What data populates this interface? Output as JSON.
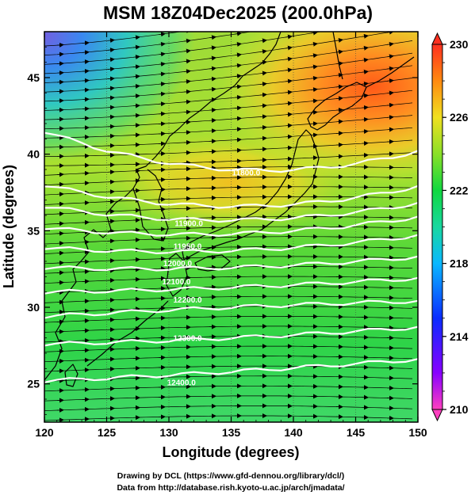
{
  "title": "MSM 18Z04Dec2025 (200.0hPa)",
  "xlabel": "Longitude (degrees)",
  "ylabel": "Latitude  (degrees)",
  "credits": [
    "Drawing by DCL (https://www.gfd-dennou.org/library/dcl/)",
    "Data from http://database.rish.kyoto-u.ac.jp/arch/jmadata/"
  ],
  "map": {
    "lon_range": [
      120,
      150
    ],
    "lat_range": [
      22.5,
      48
    ],
    "lon_ticks": [
      "120",
      "125",
      "130",
      "135",
      "140",
      "145",
      "150"
    ],
    "lat_ticks": [
      "25",
      "30",
      "35",
      "40",
      "45"
    ],
    "fill_variable_range": [
      210,
      230
    ],
    "colorbar_ticks": [
      "210",
      "214",
      "218",
      "222",
      "226",
      "230"
    ],
    "contour_labels": [
      {
        "text": "11800.0",
        "lon": 136.2,
        "lat": 38.6
      },
      {
        "text": "11900.0",
        "lon": 131.6,
        "lat": 35.3
      },
      {
        "text": "11950.0",
        "lon": 131.5,
        "lat": 33.8
      },
      {
        "text": "12000.0",
        "lon": 130.7,
        "lat": 32.7
      },
      {
        "text": "12100.0",
        "lon": 130.6,
        "lat": 31.5
      },
      {
        "text": "12200.0",
        "lon": 131.5,
        "lat": 30.3
      },
      {
        "text": "12300.0",
        "lon": 131.5,
        "lat": 27.8
      },
      {
        "text": "12400.0",
        "lon": 131.0,
        "lat": 24.9
      }
    ],
    "contours": [
      {
        "lat_west": 41.5,
        "lat_mid": 39.0,
        "lat_east": 40.2
      },
      {
        "lat_west": 38.0,
        "lat_mid": 36.6,
        "lat_east": 37.9
      },
      {
        "lat_west": 36.6,
        "lat_mid": 35.7,
        "lat_east": 36.8
      },
      {
        "lat_west": 35.2,
        "lat_mid": 34.8,
        "lat_east": 35.9
      },
      {
        "lat_west": 33.9,
        "lat_mid": 33.7,
        "lat_east": 34.7
      },
      {
        "lat_west": 32.6,
        "lat_mid": 32.6,
        "lat_east": 33.3
      },
      {
        "lat_west": 31.0,
        "lat_mid": 31.3,
        "lat_east": 31.9
      },
      {
        "lat_west": 29.4,
        "lat_mid": 30.0,
        "lat_east": 30.4
      },
      {
        "lat_west": 27.6,
        "lat_mid": 28.0,
        "lat_east": 28.7
      },
      {
        "lat_west": 25.2,
        "lat_mid": 25.8,
        "lat_east": 26.6
      }
    ]
  }
}
